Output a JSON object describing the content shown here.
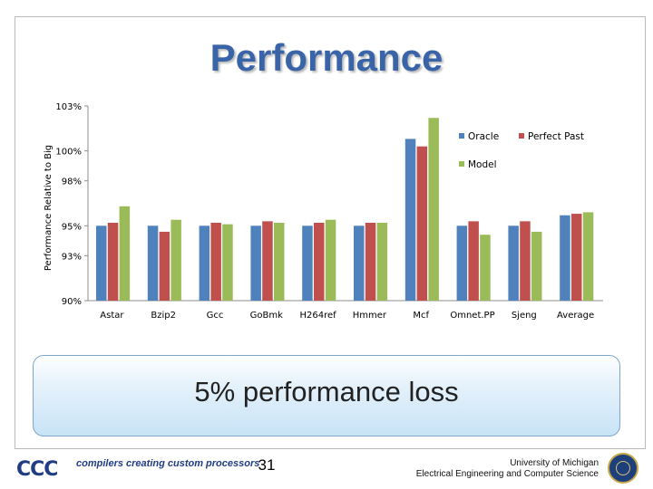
{
  "slide": {
    "title": "Performance",
    "callout": "5% performance loss",
    "page_number": "31",
    "footer_logo": "CCC",
    "footer_tagline": "compilers creating custom processors",
    "university_line1": "University of Michigan",
    "university_line2": "Electrical Engineering and Computer Science"
  },
  "chart_data": {
    "type": "bar",
    "title": "",
    "ylabel": "Performance Relative to Big",
    "xlabel": "",
    "categories": [
      "Astar",
      "Bzip2",
      "Gcc",
      "GoBmk",
      "H264ref",
      "Hmmer",
      "Mcf",
      "Omnet.PP",
      "Sjeng",
      "Average"
    ],
    "ylim": [
      90,
      103
    ],
    "yticks": [
      90,
      93,
      95,
      98,
      100,
      103
    ],
    "ytick_labels": [
      "90%",
      "93%",
      "95%",
      "98%",
      "100%",
      "103%"
    ],
    "grid": false,
    "legend_position": "top-right",
    "series": [
      {
        "name": "Oracle",
        "color": "#4f81bd",
        "values": [
          95.0,
          95.0,
          95.0,
          95.0,
          95.0,
          95.0,
          100.8,
          95.0,
          95.0,
          95.7
        ]
      },
      {
        "name": "Perfect Past",
        "color": "#c0504d",
        "values": [
          95.2,
          94.6,
          95.2,
          95.3,
          95.2,
          95.2,
          100.3,
          95.3,
          95.3,
          95.8
        ]
      },
      {
        "name": "Model",
        "color": "#9bbb59",
        "values": [
          96.3,
          95.4,
          95.1,
          95.2,
          95.4,
          95.2,
          102.2,
          94.4,
          94.6,
          95.9
        ]
      }
    ]
  }
}
